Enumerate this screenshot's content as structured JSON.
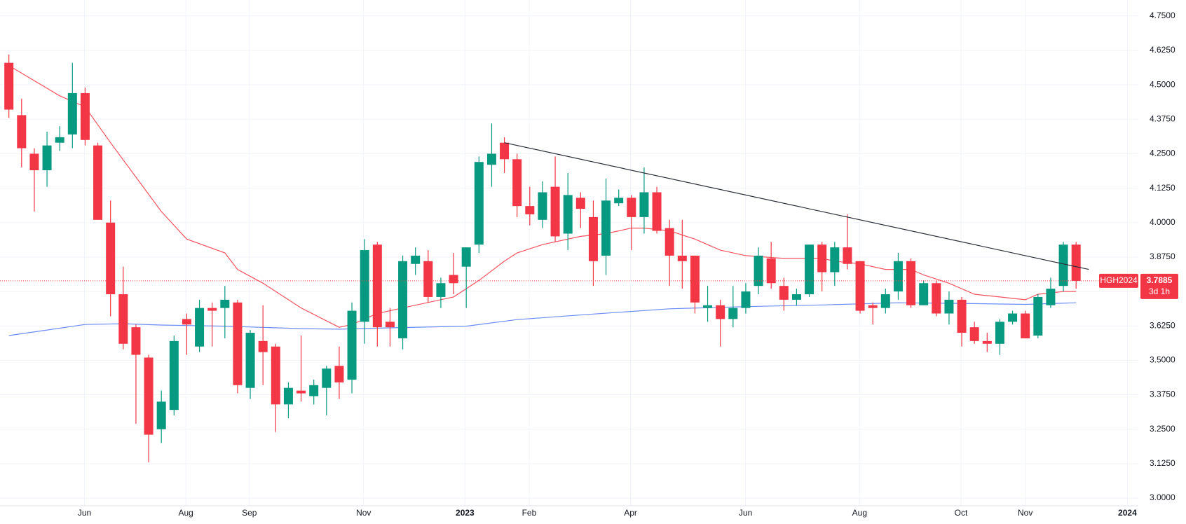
{
  "chart_data": {
    "type": "candlestick",
    "symbol": "HGH2024",
    "countdown": "3d 1h",
    "up_color": "#089981",
    "down_color": "#f23645",
    "grid": true,
    "xlim": [
      -0.7,
      88.9
    ],
    "xticks": [
      {
        "value": 5.95,
        "label": "Jun"
      },
      {
        "value": 13.93,
        "label": "Aug"
      },
      {
        "value": 18.93,
        "label": "Sep"
      },
      {
        "value": 27.92,
        "label": "Nov"
      },
      {
        "value": 35.9,
        "label": "2023",
        "bold": true
      },
      {
        "value": 40.95,
        "label": "Feb"
      },
      {
        "value": 48.93,
        "label": "Apr"
      },
      {
        "value": 57.98,
        "label": "Jun"
      },
      {
        "value": 66.96,
        "label": "Aug"
      },
      {
        "value": 74.94,
        "label": "Oct"
      },
      {
        "value": 80.0,
        "label": "Nov"
      },
      {
        "value": 88.04,
        "label": "2024",
        "bold": true
      }
    ],
    "ylim": [
      2.972,
      4.808
    ],
    "yticks": [
      {
        "value": 3.0,
        "label": "3.0000"
      },
      {
        "value": 3.125,
        "label": "3.1250"
      },
      {
        "value": 3.25,
        "label": "3.2500"
      },
      {
        "value": 3.375,
        "label": "3.3750"
      },
      {
        "value": 3.5,
        "label": "3.5000"
      },
      {
        "value": 3.625,
        "label": "3.6250"
      },
      {
        "value": 3.75,
        "label": "3.7500"
      },
      {
        "value": 3.875,
        "label": "3.8750"
      },
      {
        "value": 4.0,
        "label": "4.0000"
      },
      {
        "value": 4.125,
        "label": "4.1250"
      },
      {
        "value": 4.25,
        "label": "4.2500"
      },
      {
        "value": 4.375,
        "label": "4.3750"
      },
      {
        "value": 4.5,
        "label": "4.5000"
      },
      {
        "value": 4.625,
        "label": "4.6250"
      },
      {
        "value": 4.75,
        "label": "4.7500"
      }
    ],
    "candles": {
      "open": [
        4.58,
        4.39,
        4.25,
        4.19,
        4.29,
        4.32,
        4.47,
        4.28,
        4.0,
        3.74,
        3.62,
        3.51,
        3.25,
        3.32,
        3.65,
        3.55,
        3.69,
        3.69,
        3.71,
        3.4,
        3.57,
        3.55,
        3.34,
        3.39,
        3.37,
        3.4,
        3.48,
        3.43,
        3.64,
        3.92,
        3.64,
        3.58,
        3.85,
        3.86,
        3.73,
        3.81,
        3.84,
        3.92,
        4.21,
        4.29,
        4.23,
        4.06,
        4.01,
        4.13,
        3.96,
        4.09,
        4.02,
        3.88,
        4.07,
        4.09,
        4.02,
        4.11,
        3.98,
        3.88,
        3.88,
        3.69,
        3.7,
        3.65,
        3.69,
        3.77,
        3.87,
        3.77,
        3.72,
        3.74,
        3.92,
        3.82,
        3.91,
        3.86,
        3.7,
        3.69,
        3.75,
        3.86,
        3.7,
        3.78,
        3.67,
        3.72,
        3.62,
        3.57,
        3.56,
        3.64,
        3.67,
        3.59,
        3.7,
        3.77,
        3.92
      ],
      "high": [
        4.61,
        4.45,
        4.27,
        4.33,
        4.35,
        4.58,
        4.49,
        4.29,
        4.08,
        3.84,
        3.63,
        3.52,
        3.39,
        3.59,
        3.67,
        3.72,
        3.71,
        3.77,
        3.72,
        3.61,
        3.7,
        3.56,
        3.42,
        3.59,
        3.43,
        3.48,
        3.55,
        3.71,
        3.94,
        3.93,
        3.69,
        3.88,
        3.91,
        3.9,
        3.8,
        3.89,
        3.91,
        4.24,
        4.36,
        4.31,
        4.25,
        4.13,
        4.15,
        4.24,
        4.18,
        4.11,
        4.08,
        4.16,
        4.12,
        4.1,
        4.2,
        4.13,
        4.01,
        4.01,
        3.88,
        3.77,
        3.72,
        3.77,
        3.78,
        3.91,
        3.93,
        3.8,
        3.76,
        3.92,
        3.93,
        3.93,
        4.03,
        3.86,
        3.71,
        3.76,
        3.89,
        3.87,
        3.79,
        3.79,
        3.75,
        3.73,
        3.64,
        3.6,
        3.65,
        3.68,
        3.68,
        3.74,
        3.8,
        3.93,
        3.93
      ],
      "low": [
        4.38,
        4.2,
        4.04,
        4.13,
        4.26,
        4.27,
        4.28,
        4.01,
        3.66,
        3.54,
        3.27,
        3.13,
        3.2,
        3.3,
        3.52,
        3.53,
        3.55,
        3.58,
        3.38,
        3.36,
        3.41,
        3.24,
        3.29,
        3.35,
        3.34,
        3.3,
        3.36,
        3.38,
        3.56,
        3.55,
        3.55,
        3.54,
        3.81,
        3.71,
        3.69,
        3.74,
        3.69,
        3.89,
        4.13,
        4.18,
        4.02,
        3.99,
        3.98,
        3.93,
        3.9,
        3.98,
        3.77,
        3.81,
        4.06,
        3.9,
        3.96,
        3.96,
        3.77,
        3.76,
        3.67,
        3.64,
        3.55,
        3.62,
        3.67,
        3.74,
        3.76,
        3.68,
        3.7,
        3.73,
        3.75,
        3.77,
        3.83,
        3.67,
        3.63,
        3.67,
        3.72,
        3.69,
        3.7,
        3.66,
        3.63,
        3.55,
        3.56,
        3.53,
        3.52,
        3.63,
        3.58,
        3.58,
        3.69,
        3.75,
        3.76
      ],
      "close": [
        4.41,
        4.27,
        4.19,
        4.28,
        4.31,
        4.47,
        4.3,
        4.01,
        3.74,
        3.56,
        3.52,
        3.23,
        3.35,
        3.57,
        3.63,
        3.69,
        3.68,
        3.72,
        3.41,
        3.6,
        3.53,
        3.34,
        3.4,
        3.38,
        3.41,
        3.47,
        3.42,
        3.68,
        3.9,
        3.62,
        3.62,
        3.86,
        3.88,
        3.73,
        3.78,
        3.78,
        3.91,
        4.22,
        4.25,
        4.23,
        4.06,
        4.03,
        4.11,
        3.95,
        4.1,
        4.05,
        3.86,
        4.08,
        4.09,
        4.02,
        4.11,
        3.97,
        3.88,
        3.86,
        3.71,
        3.7,
        3.65,
        3.69,
        3.75,
        3.88,
        3.78,
        3.72,
        3.74,
        3.92,
        3.82,
        3.91,
        3.85,
        3.68,
        3.69,
        3.74,
        3.86,
        3.7,
        3.78,
        3.67,
        3.72,
        3.6,
        3.57,
        3.56,
        3.64,
        3.67,
        3.58,
        3.73,
        3.76,
        3.92,
        3.7885
      ]
    },
    "overlays": [
      {
        "color": "#f7525f",
        "x": [
          0,
          4,
          6,
          8,
          12,
          14,
          17,
          18,
          20,
          23,
          26,
          27,
          29,
          31,
          35,
          37,
          39,
          40,
          42,
          45,
          47,
          49,
          50,
          52,
          54,
          56,
          58,
          61,
          64,
          65,
          67,
          69,
          71,
          72,
          74,
          76,
          78,
          80,
          81,
          83,
          84
        ],
        "values": [
          4.57,
          4.46,
          4.42,
          4.29,
          4.04,
          3.94,
          3.89,
          3.83,
          3.78,
          3.69,
          3.62,
          3.63,
          3.67,
          3.69,
          3.73,
          3.79,
          3.86,
          3.89,
          3.92,
          3.95,
          3.96,
          3.98,
          3.98,
          3.97,
          3.94,
          3.9,
          3.88,
          3.87,
          3.87,
          3.86,
          3.85,
          3.83,
          3.83,
          3.81,
          3.78,
          3.74,
          3.73,
          3.72,
          3.74,
          3.75,
          3.75
        ]
      },
      {
        "color": "#6a8cf3",
        "x": [
          0,
          3,
          6,
          9,
          12,
          17,
          23,
          26,
          30,
          36,
          40,
          46,
          52,
          58,
          64,
          70,
          76,
          80,
          84
        ],
        "values": [
          3.59,
          3.61,
          3.63,
          3.633,
          3.628,
          3.624,
          3.615,
          3.613,
          3.618,
          3.624,
          3.648,
          3.668,
          3.687,
          3.695,
          3.701,
          3.709,
          3.706,
          3.703,
          3.709
        ]
      }
    ],
    "trendline": {
      "color": "#2a2e39",
      "x": [
        39,
        85
      ],
      "values": [
        4.29,
        3.83
      ]
    }
  }
}
